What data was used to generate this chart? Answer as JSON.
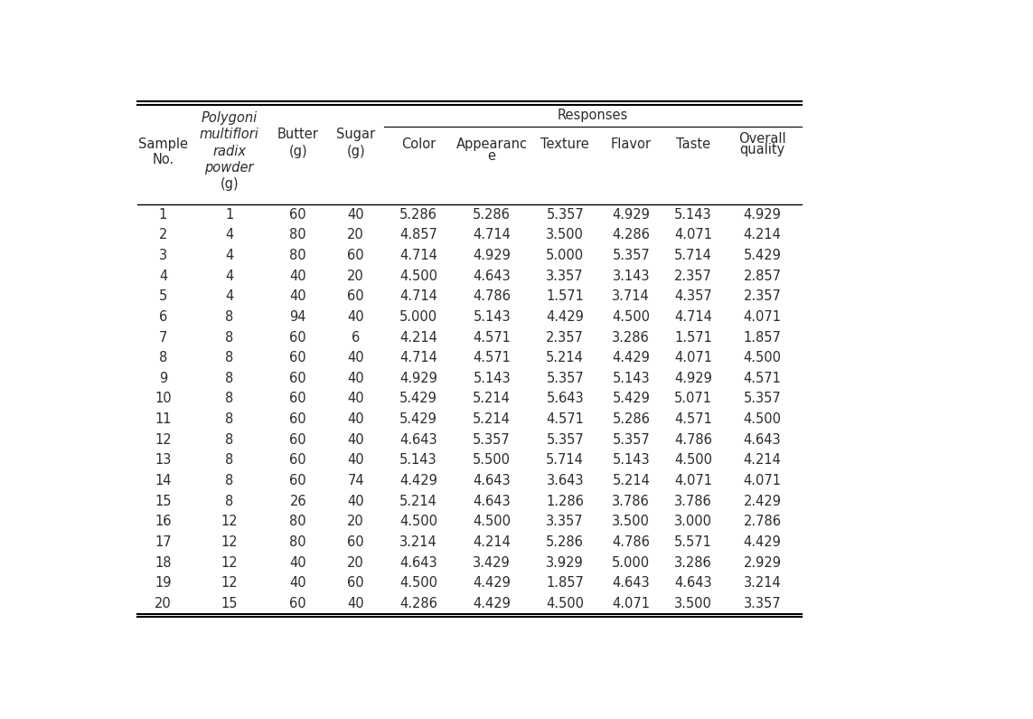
{
  "rows": [
    [
      1,
      1,
      60,
      40,
      5.286,
      5.286,
      5.357,
      4.929,
      5.143,
      4.929
    ],
    [
      2,
      4,
      80,
      20,
      4.857,
      4.714,
      3.5,
      4.286,
      4.071,
      4.214
    ],
    [
      3,
      4,
      80,
      60,
      4.714,
      4.929,
      5.0,
      5.357,
      5.714,
      5.429
    ],
    [
      4,
      4,
      40,
      20,
      4.5,
      4.643,
      3.357,
      3.143,
      2.357,
      2.857
    ],
    [
      5,
      4,
      40,
      60,
      4.714,
      4.786,
      1.571,
      3.714,
      4.357,
      2.357
    ],
    [
      6,
      8,
      94,
      40,
      5.0,
      5.143,
      4.429,
      4.5,
      4.714,
      4.071
    ],
    [
      7,
      8,
      60,
      6,
      4.214,
      4.571,
      2.357,
      3.286,
      1.571,
      1.857
    ],
    [
      8,
      8,
      60,
      40,
      4.714,
      4.571,
      5.214,
      4.429,
      4.071,
      4.5
    ],
    [
      9,
      8,
      60,
      40,
      4.929,
      5.143,
      5.357,
      5.143,
      4.929,
      4.571
    ],
    [
      10,
      8,
      60,
      40,
      5.429,
      5.214,
      5.643,
      5.429,
      5.071,
      5.357
    ],
    [
      11,
      8,
      60,
      40,
      5.429,
      5.214,
      4.571,
      5.286,
      4.571,
      4.5
    ],
    [
      12,
      8,
      60,
      40,
      4.643,
      5.357,
      5.357,
      5.357,
      4.786,
      4.643
    ],
    [
      13,
      8,
      60,
      40,
      5.143,
      5.5,
      5.714,
      5.143,
      4.5,
      4.214
    ],
    [
      14,
      8,
      60,
      74,
      4.429,
      4.643,
      3.643,
      5.214,
      4.071,
      4.071
    ],
    [
      15,
      8,
      26,
      40,
      5.214,
      4.643,
      1.286,
      3.786,
      3.786,
      2.429
    ],
    [
      16,
      12,
      80,
      20,
      4.5,
      4.5,
      3.357,
      3.5,
      3.0,
      2.786
    ],
    [
      17,
      12,
      80,
      60,
      3.214,
      4.214,
      5.286,
      4.786,
      5.571,
      4.429
    ],
    [
      18,
      12,
      40,
      20,
      4.643,
      3.429,
      3.929,
      5.0,
      3.286,
      2.929
    ],
    [
      19,
      12,
      40,
      60,
      4.5,
      4.429,
      1.857,
      4.643,
      4.643,
      3.214
    ],
    [
      20,
      15,
      60,
      40,
      4.286,
      4.429,
      4.5,
      4.071,
      3.5,
      3.357
    ]
  ],
  "bg_color": "#ffffff",
  "text_color": "#2b2b2b",
  "font_size": 10.5,
  "header_font_size": 10.5
}
